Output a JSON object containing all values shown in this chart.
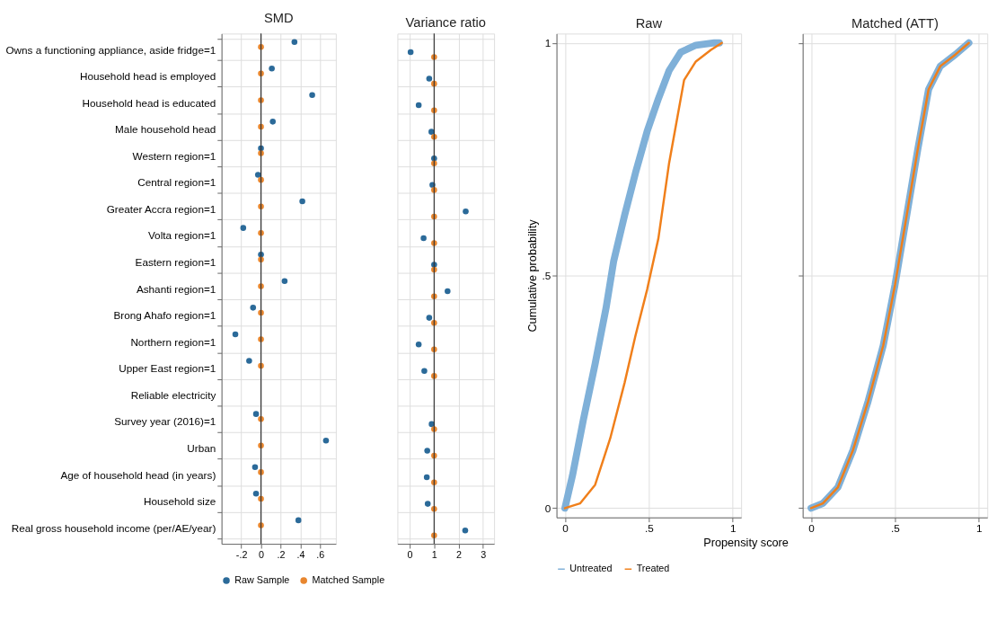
{
  "chart_data": [
    {
      "type": "scatter",
      "title": "SMD",
      "orientation": "horizontal",
      "marker": "circle",
      "grid": true,
      "legend": "bottom",
      "categories": [
        "Owns a functioning appliance, aside fridge=1",
        "Household head is employed",
        "Household head is educated",
        "Male household head",
        "Western region=1",
        "Central region=1",
        "Greater Accra region=1",
        "Volta region=1",
        "Eastern region=1",
        "Ashanti region=1",
        "Brong Ahafo region=1",
        "Northern region=1",
        "Upper East region=1",
        "Reliable electricity",
        "Survey year (2016)=1",
        "Urban",
        "Age of household head (in years)",
        "Household size",
        "Real gross household income (per/AE/year)"
      ],
      "xlim": [
        -0.4,
        0.76
      ],
      "xticks": [
        {
          "value": -0.2,
          "label": "-.2"
        },
        0,
        {
          "value": 0.2,
          "label": ".2"
        },
        {
          "value": 0.4,
          "label": ".4"
        },
        {
          "value": 0.6,
          "label": ".6"
        }
      ],
      "ref_lines": [
        {
          "axis": "x",
          "value": 0,
          "color": "#333333"
        }
      ],
      "series": [
        {
          "name": "Raw Sample",
          "color": "#2b6a99",
          "values": [
            0.34,
            0.11,
            0.52,
            0.12,
            0.0,
            -0.03,
            0.42,
            -0.18,
            0.0,
            0.24,
            -0.08,
            -0.26,
            -0.12,
            null,
            -0.05,
            0.66,
            -0.06,
            -0.05,
            0.38
          ]
        },
        {
          "name": "Matched Sample",
          "color": "#e8862e",
          "values": [
            0.0,
            0.0,
            0.0,
            0.0,
            0.0,
            0.0,
            0.0,
            0.0,
            0.0,
            0.0,
            0.0,
            0.0,
            0.0,
            null,
            0.0,
            0.0,
            0.0,
            0.0,
            0.0
          ]
        }
      ]
    },
    {
      "type": "scatter",
      "title": "Variance ratio",
      "orientation": "horizontal",
      "marker": "circle",
      "grid": true,
      "tick_labels": "x",
      "categories": [
        null,
        null,
        null,
        null,
        null,
        null,
        null,
        null,
        null,
        null,
        null,
        null,
        null,
        null,
        null,
        null,
        null,
        null,
        null
      ],
      "xlim": [
        -0.5,
        3.45
      ],
      "xticks": [
        0,
        1,
        2,
        3
      ],
      "ref_lines": [
        {
          "axis": "x",
          "value": 1,
          "color": "#333333"
        }
      ],
      "series": [
        {
          "color": "#2b6a99",
          "values": [
            0.04,
            0.8,
            0.37,
            0.89,
            1.0,
            0.93,
            2.29,
            0.57,
            1.0,
            1.55,
            0.8,
            0.37,
            0.6,
            null,
            0.9,
            0.72,
            0.7,
            0.74,
            2.27
          ]
        },
        {
          "color": "#e8862e",
          "values": [
            1.0,
            1.0,
            1.0,
            1.0,
            1.0,
            1.0,
            1.0,
            1.0,
            1.0,
            1.0,
            1.0,
            1.0,
            1.0,
            null,
            1.0,
            1.0,
            1.0,
            1.0,
            1.0
          ]
        }
      ]
    },
    {
      "type": "line",
      "title": "Raw",
      "xlabel": "Propensity score",
      "ylabel": "Cumulative probability",
      "grid": true,
      "legend": "bottom",
      "xlim": [
        -0.05,
        1.05
      ],
      "xticks": [
        0,
        {
          "value": 0.5,
          "label": ".5"
        },
        1
      ],
      "ylim": [
        -0.02,
        1.02
      ],
      "yticks": [
        0,
        {
          "value": 0.5,
          "label": ".5"
        },
        1
      ],
      "series": [
        {
          "name": "Untreated",
          "color": "#7fb0d8",
          "x": [
            0,
            0.045,
            0.11,
            0.18,
            0.245,
            0.29,
            0.356,
            0.42,
            0.49,
            0.557,
            0.62,
            0.69,
            0.78,
            0.89,
            0.92
          ],
          "values": [
            0,
            0.07,
            0.19,
            0.31,
            0.43,
            0.53,
            0.63,
            0.72,
            0.81,
            0.88,
            0.94,
            0.98,
            0.995,
            1.0,
            1.0
          ]
        },
        {
          "name": "Treated",
          "color": "#f07f1a",
          "x": [
            0,
            0.09,
            0.18,
            0.27,
            0.356,
            0.42,
            0.49,
            0.557,
            0.62,
            0.67,
            0.71,
            0.78,
            0.87,
            0.935
          ],
          "values": [
            0,
            0.01,
            0.05,
            0.15,
            0.27,
            0.37,
            0.47,
            0.58,
            0.74,
            0.84,
            0.92,
            0.96,
            0.985,
            1.0
          ]
        }
      ]
    },
    {
      "type": "line",
      "title": "Matched (ATT)",
      "grid": true,
      "tick_labels": "x",
      "xlim": [
        -0.05,
        1.05
      ],
      "xticks": [
        0,
        {
          "value": 0.5,
          "label": ".5"
        },
        1
      ],
      "ylim": [
        -0.02,
        1.02
      ],
      "yticks": [
        {
          "value": 0,
          "label": null
        },
        {
          "value": 0.5,
          "label": null
        },
        {
          "value": 1,
          "label": null
        }
      ],
      "series": [
        {
          "color": "#7fb0d8",
          "x": [
            0,
            0.07,
            0.16,
            0.25,
            0.34,
            0.43,
            0.5,
            0.57,
            0.635,
            0.7,
            0.77,
            0.86,
            0.94
          ],
          "values": [
            0,
            0.01,
            0.045,
            0.125,
            0.23,
            0.35,
            0.48,
            0.63,
            0.77,
            0.9,
            0.95,
            0.975,
            1.0
          ]
        },
        {
          "color": "#f07f1a",
          "x": [
            0,
            0.07,
            0.16,
            0.25,
            0.34,
            0.43,
            0.5,
            0.57,
            0.635,
            0.7,
            0.77,
            0.86,
            0.94
          ],
          "values": [
            0,
            0.01,
            0.045,
            0.125,
            0.23,
            0.35,
            0.48,
            0.63,
            0.77,
            0.9,
            0.95,
            0.975,
            1.0
          ]
        }
      ]
    }
  ]
}
